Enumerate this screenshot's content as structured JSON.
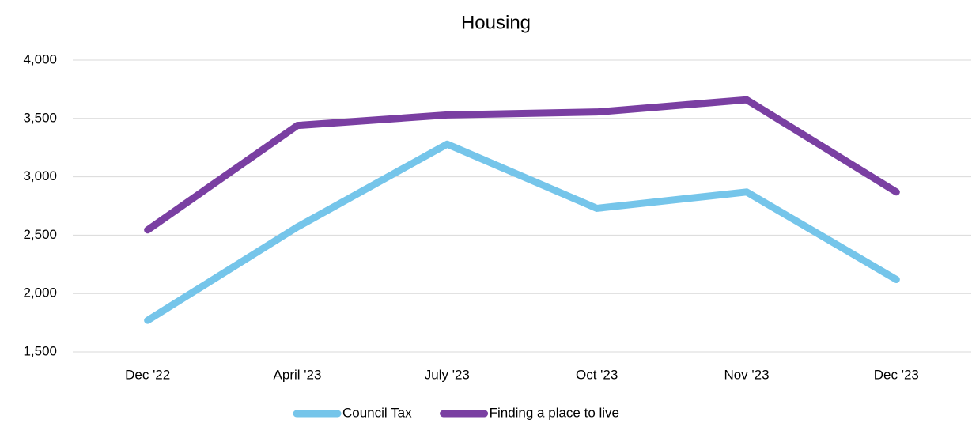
{
  "chart_data": {
    "type": "line",
    "title": "Housing",
    "categories": [
      "Dec '22",
      "April '23",
      "July '23",
      "Oct '23",
      "Nov '23",
      "Dec '23"
    ],
    "series": [
      {
        "name": "Council Tax",
        "color": "#75c5ea",
        "values": [
          1770,
          2570,
          3280,
          2730,
          2870,
          2120
        ]
      },
      {
        "name": "Finding a place to live",
        "color": "#7a3fa2",
        "values": [
          2545,
          3440,
          3530,
          3555,
          3660,
          2870
        ]
      }
    ],
    "ylim": [
      1500,
      4000
    ],
    "yticks": [
      {
        "value": 1500,
        "label": "1,500"
      },
      {
        "value": 2000,
        "label": "2,000"
      },
      {
        "value": 2500,
        "label": "2,500"
      },
      {
        "value": 3000,
        "label": "3,000"
      },
      {
        "value": 3500,
        "label": "3,500"
      },
      {
        "value": 4000,
        "label": "4,000"
      }
    ],
    "grid": true,
    "legend": "bottom"
  }
}
